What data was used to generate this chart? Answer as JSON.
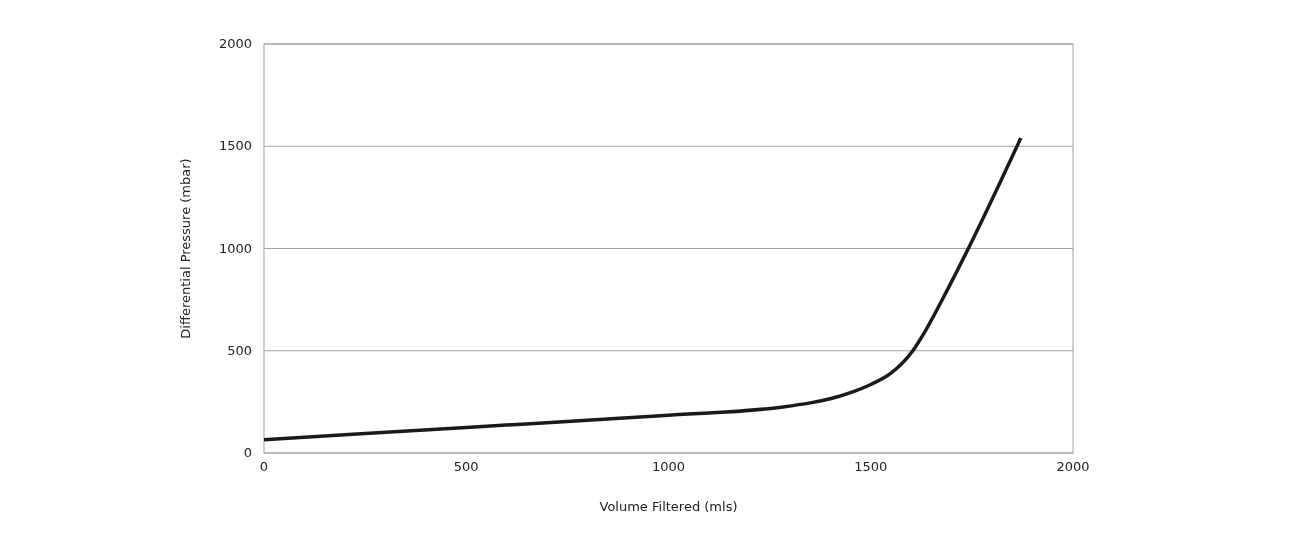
{
  "chart_data": {
    "type": "line",
    "xlabel": "Volume Filtered (mls)",
    "ylabel": "Differential Pressure (mbar)",
    "x": [
      0,
      500,
      1000,
      1283,
      1350,
      1400,
      1450,
      1500,
      1550,
      1604,
      1630,
      1690,
      1745,
      1871
    ],
    "series": [
      {
        "color": "#1a1a1a",
        "values": [
          65,
          125,
          185,
          225,
          245,
          265,
          295,
          335,
          390,
          500,
          580,
          800,
          1015,
          1540
        ]
      }
    ],
    "xlim": [
      0,
      2000
    ],
    "xticks": [
      0,
      500,
      1000,
      1500,
      2000
    ],
    "ylim": [
      0,
      2000
    ],
    "yticks": [
      0,
      500,
      1000,
      1500,
      2000
    ],
    "grid": "y",
    "marker": "none",
    "line_style": "solid"
  }
}
